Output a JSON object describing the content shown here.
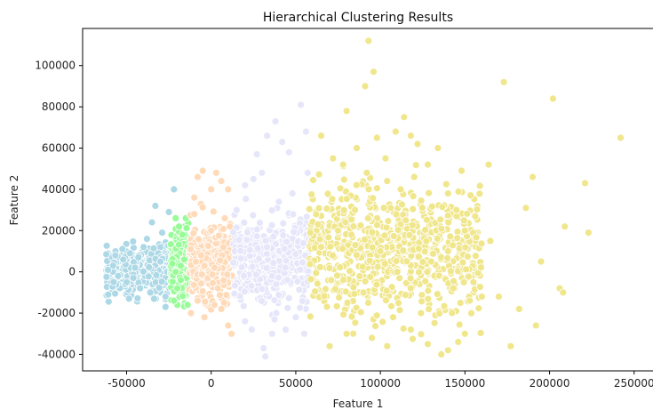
{
  "chart_data": {
    "type": "scatter",
    "title": "Hierarchical Clustering Results",
    "xlabel": "Feature 1",
    "ylabel": "Feature 2",
    "xlim": [
      -76000,
      258000
    ],
    "ylim": [
      -48000,
      118000
    ],
    "xticks": [
      -50000,
      0,
      50000,
      100000,
      150000,
      200000,
      250000
    ],
    "yticks": [
      -40000,
      -20000,
      0,
      20000,
      40000,
      60000,
      80000,
      100000
    ],
    "grid": false,
    "legend": "none",
    "clusters": [
      {
        "color": "#add8e6",
        "x_range": [
          -62000,
          -24000
        ],
        "y_spread": [
          -14000,
          14000
        ],
        "points": [
          [
            -61000,
            1000
          ],
          [
            -58000,
            3000
          ],
          [
            -55000,
            -2000
          ],
          [
            -52000,
            6000
          ],
          [
            -50000,
            -5000
          ],
          [
            -48000,
            9000
          ],
          [
            -45000,
            2000
          ],
          [
            -42000,
            -8000
          ],
          [
            -40000,
            12000
          ],
          [
            -38000,
            16000
          ],
          [
            -36000,
            -10000
          ],
          [
            -35000,
            24000
          ],
          [
            -33000,
            32000
          ],
          [
            -30000,
            5000
          ],
          [
            -29000,
            19000
          ],
          [
            -27000,
            -12000
          ],
          [
            -26000,
            0
          ],
          [
            -25000,
            29000
          ],
          [
            -22000,
            40000
          ],
          [
            -27000,
            -17000
          ],
          [
            -24000,
            10000
          ],
          [
            -46000,
            -3000
          ],
          [
            -43000,
            7000
          ]
        ]
      },
      {
        "color": "#98fb98",
        "x_range": [
          -24000,
          -13000
        ],
        "y_spread": [
          -16000,
          24000
        ],
        "points": [
          [
            -21000,
            26000
          ],
          [
            -19000,
            22000
          ],
          [
            -17000,
            18000
          ],
          [
            -15000,
            26000
          ],
          [
            -22000,
            -14000
          ],
          [
            -20000,
            -8000
          ],
          [
            -18000,
            -4000
          ],
          [
            -16000,
            6000
          ],
          [
            -14000,
            12000
          ],
          [
            -13000,
            -6000
          ],
          [
            -23000,
            4000
          ],
          [
            -21000,
            0
          ],
          [
            -14000,
            -16000
          ]
        ]
      },
      {
        "color": "#ffdab9",
        "x_range": [
          -13000,
          13000
        ],
        "y_spread": [
          -20000,
          28000
        ],
        "points": [
          [
            -10000,
            36000
          ],
          [
            -8000,
            46000
          ],
          [
            -5000,
            49000
          ],
          [
            0,
            40000
          ],
          [
            3000,
            48000
          ],
          [
            6000,
            44000
          ],
          [
            10000,
            40000
          ],
          [
            -12000,
            -20000
          ],
          [
            -8000,
            -14000
          ],
          [
            -4000,
            -22000
          ],
          [
            2000,
            -16000
          ],
          [
            6000,
            -18000
          ],
          [
            10000,
            -26000
          ],
          [
            12000,
            -30000
          ],
          [
            0,
            20000
          ],
          [
            4000,
            -8000
          ],
          [
            -10000,
            28000
          ],
          [
            8000,
            26000
          ],
          [
            11000,
            22000
          ],
          [
            -6000,
            8000
          ],
          [
            2000,
            2000
          ]
        ]
      },
      {
        "color": "#e6e6fa",
        "x_range": [
          13000,
          58000
        ],
        "y_spread": [
          -22000,
          34000
        ],
        "points": [
          [
            27000,
            57000
          ],
          [
            30000,
            48000
          ],
          [
            33000,
            66000
          ],
          [
            38000,
            73000
          ],
          [
            42000,
            63000
          ],
          [
            46000,
            58000
          ],
          [
            53000,
            81000
          ],
          [
            56000,
            68000
          ],
          [
            20000,
            42000
          ],
          [
            25000,
            45000
          ],
          [
            31000,
            -37000
          ],
          [
            32000,
            -41000
          ],
          [
            20000,
            -24000
          ],
          [
            24000,
            -28000
          ],
          [
            36000,
            -30000
          ],
          [
            44000,
            -28000
          ],
          [
            50000,
            -22000
          ],
          [
            55000,
            -30000
          ],
          [
            57000,
            48000
          ],
          [
            15000,
            30000
          ],
          [
            40000,
            34000
          ],
          [
            48000,
            38000
          ]
        ]
      },
      {
        "color": "#f0e68c",
        "x_range": [
          58000,
          160000
        ],
        "y_spread": [
          -30000,
          50000
        ],
        "outliers": [
          [
            93000,
            112000
          ],
          [
            96000,
            97000
          ],
          [
            91000,
            90000
          ],
          [
            173000,
            92000
          ],
          [
            202000,
            84000
          ],
          [
            242000,
            65000
          ],
          [
            221000,
            43000
          ],
          [
            223000,
            19000
          ],
          [
            209000,
            22000
          ],
          [
            206000,
            -8000
          ],
          [
            208000,
            -10000
          ],
          [
            192000,
            -26000
          ],
          [
            177000,
            -36000
          ],
          [
            182000,
            -18000
          ],
          [
            164000,
            52000
          ],
          [
            156000,
            27000
          ],
          [
            190000,
            46000
          ],
          [
            195000,
            5000
          ],
          [
            170000,
            -12000
          ],
          [
            165000,
            15000
          ],
          [
            148000,
            49000
          ],
          [
            186000,
            31000
          ]
        ],
        "points": [
          [
            80000,
            78000
          ],
          [
            86000,
            60000
          ],
          [
            98000,
            65000
          ],
          [
            103000,
            55000
          ],
          [
            109000,
            68000
          ],
          [
            114000,
            75000
          ],
          [
            118000,
            66000
          ],
          [
            122000,
            62000
          ],
          [
            134000,
            60000
          ],
          [
            65000,
            66000
          ],
          [
            72000,
            55000
          ],
          [
            78000,
            52000
          ],
          [
            92000,
            48000
          ],
          [
            104000,
            44000
          ],
          [
            112000,
            40000
          ],
          [
            120000,
            46000
          ],
          [
            128000,
            52000
          ],
          [
            140000,
            38000
          ],
          [
            145000,
            30000
          ],
          [
            150000,
            20000
          ],
          [
            70000,
            -36000
          ],
          [
            80000,
            -30000
          ],
          [
            95000,
            -32000
          ],
          [
            104000,
            -36000
          ],
          [
            118000,
            -28000
          ],
          [
            128000,
            -35000
          ],
          [
            136000,
            -40000
          ],
          [
            140000,
            -38000
          ],
          [
            146000,
            -34000
          ],
          [
            150000,
            -30000
          ],
          [
            124000,
            -20000
          ],
          [
            100000,
            10000
          ],
          [
            110000,
            0
          ],
          [
            130000,
            5000
          ],
          [
            90000,
            -10000
          ],
          [
            75000,
            20000
          ],
          [
            85000,
            30000
          ],
          [
            115000,
            25000
          ],
          [
            140000,
            10000
          ],
          [
            155000,
            -5000
          ],
          [
            160000,
            -12000
          ]
        ]
      }
    ]
  }
}
